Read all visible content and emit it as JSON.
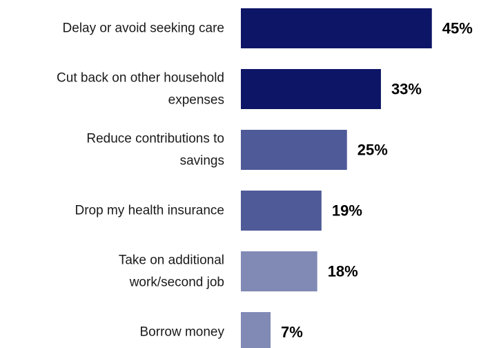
{
  "chart_data": {
    "type": "bar",
    "orientation": "horizontal",
    "categories": [
      [
        "Delay or avoid seeking care"
      ],
      [
        "Cut back on other household",
        "expenses"
      ],
      [
        "Reduce contributions to",
        "savings"
      ],
      [
        "Drop my health insurance"
      ],
      [
        "Take on additional",
        "work/second job"
      ],
      [
        "Borrow money"
      ]
    ],
    "values": [
      45,
      33,
      25,
      19,
      18,
      7
    ],
    "value_labels": [
      "45%",
      "33%",
      "25%",
      "19%",
      "18%",
      "7%"
    ],
    "bar_colors": [
      "#0d1566",
      "#0d1566",
      "#4f5a98",
      "#4f5a98",
      "#8189b5",
      "#8189b5"
    ],
    "title": "",
    "xlabel": "",
    "ylabel": "",
    "grid": false,
    "legend": "none"
  }
}
